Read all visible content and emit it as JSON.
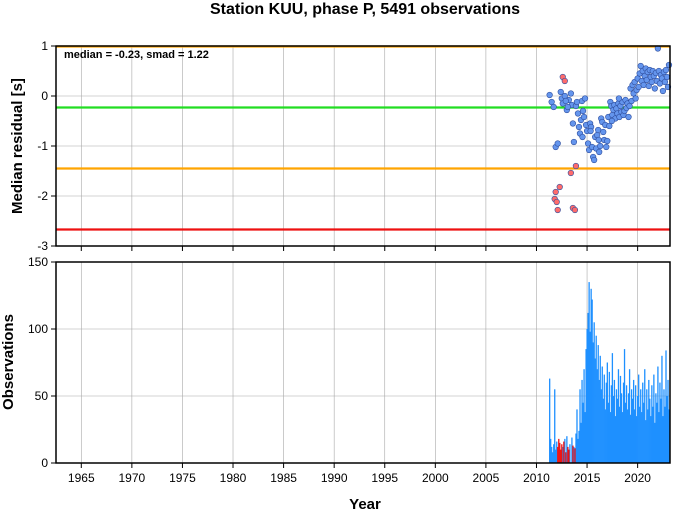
{
  "chart_data": [
    {
      "type": "scatter",
      "title": "Station KUU, phase P, 5491 observations",
      "xlabel": "",
      "ylabel": "Median residual [s]",
      "xlim": [
        1962.5,
        2023.2
      ],
      "ylim": [
        -3,
        1
      ],
      "yticks": [
        "-3",
        "-2",
        "-1",
        "0",
        "1"
      ],
      "grid": true,
      "annotation": "median = -0.23, smad = 1.22",
      "reference_lines": [
        {
          "y": 0.99,
          "color": "#ffa500"
        },
        {
          "y": -0.23,
          "color": "#22dd22"
        },
        {
          "y": -1.45,
          "color": "#ffa500"
        },
        {
          "y": -2.67,
          "color": "#ee1111"
        }
      ],
      "series": [
        {
          "color": "#ff6b6b",
          "points": [
            [
              2012.6,
              0.38
            ],
            [
              2011.9,
              -1.92
            ],
            [
              2011.8,
              -2.06
            ],
            [
              2012.0,
              -2.12
            ],
            [
              2012.1,
              -2.28
            ],
            [
              2012.3,
              -1.82
            ],
            [
              2013.6,
              -2.24
            ],
            [
              2013.8,
              -2.28
            ],
            [
              2013.9,
              -1.4
            ],
            [
              2013.4,
              -1.54
            ],
            [
              2012.8,
              0.3
            ]
          ]
        },
        {
          "color": "#6495ed",
          "points": [
            [
              2011.3,
              0.02
            ],
            [
              2011.5,
              -0.12
            ],
            [
              2011.7,
              -0.22
            ],
            [
              2011.9,
              -1.02
            ],
            [
              2012.1,
              -0.95
            ],
            [
              2012.4,
              0.08
            ],
            [
              2012.5,
              -0.05
            ],
            [
              2012.6,
              -0.15
            ],
            [
              2012.8,
              0.0
            ],
            [
              2013.0,
              -0.28
            ],
            [
              2013.2,
              -0.08
            ],
            [
              2013.4,
              0.05
            ],
            [
              2013.5,
              -0.18
            ],
            [
              2013.6,
              -0.55
            ],
            [
              2013.7,
              -0.92
            ],
            [
              2013.9,
              -0.2
            ],
            [
              2014.0,
              -0.12
            ],
            [
              2014.1,
              -0.35
            ],
            [
              2014.2,
              -0.62
            ],
            [
              2014.3,
              -0.75
            ],
            [
              2014.4,
              -0.48
            ],
            [
              2014.5,
              -0.1
            ],
            [
              2014.6,
              -0.3
            ],
            [
              2014.7,
              -0.42
            ],
            [
              2014.8,
              -0.05
            ],
            [
              2014.9,
              -0.58
            ],
            [
              2015.0,
              -0.7
            ],
            [
              2015.1,
              -0.95
            ],
            [
              2015.2,
              -1.08
            ],
            [
              2015.3,
              -0.55
            ],
            [
              2015.4,
              -0.62
            ],
            [
              2015.5,
              -1.02
            ],
            [
              2015.6,
              -1.22
            ],
            [
              2015.7,
              -1.28
            ],
            [
              2015.8,
              -0.82
            ],
            [
              2015.9,
              -1.05
            ],
            [
              2016.0,
              -0.78
            ],
            [
              2016.1,
              -0.68
            ],
            [
              2016.2,
              -1.12
            ],
            [
              2016.3,
              -1.0
            ],
            [
              2016.4,
              -0.45
            ],
            [
              2016.5,
              -0.52
            ],
            [
              2016.6,
              -0.72
            ],
            [
              2016.7,
              -0.88
            ],
            [
              2016.8,
              -0.58
            ],
            [
              2016.9,
              -1.02
            ],
            [
              2017.0,
              -0.9
            ],
            [
              2017.1,
              -0.42
            ],
            [
              2017.2,
              -0.6
            ],
            [
              2017.3,
              -0.12
            ],
            [
              2017.4,
              -0.2
            ],
            [
              2017.5,
              -0.38
            ],
            [
              2017.6,
              -0.28
            ],
            [
              2017.7,
              -0.18
            ],
            [
              2017.8,
              -0.45
            ],
            [
              2017.9,
              -0.25
            ],
            [
              2018.0,
              -0.35
            ],
            [
              2018.1,
              -0.15
            ],
            [
              2018.2,
              -0.42
            ],
            [
              2018.3,
              -0.2
            ],
            [
              2018.4,
              -0.32
            ],
            [
              2018.5,
              -0.12
            ],
            [
              2018.6,
              -0.38
            ],
            [
              2018.7,
              -0.3
            ],
            [
              2018.8,
              -0.08
            ],
            [
              2018.9,
              -0.24
            ],
            [
              2019.0,
              -0.15
            ],
            [
              2019.1,
              -0.42
            ],
            [
              2019.2,
              -0.2
            ],
            [
              2019.3,
              0.15
            ],
            [
              2019.4,
              -0.1
            ],
            [
              2019.5,
              0.22
            ],
            [
              2019.6,
              0.05
            ],
            [
              2019.7,
              0.28
            ],
            [
              2019.8,
              -0.05
            ],
            [
              2019.9,
              0.12
            ],
            [
              2020.0,
              0.35
            ],
            [
              2020.1,
              0.18
            ],
            [
              2020.2,
              0.45
            ],
            [
              2020.3,
              0.6
            ],
            [
              2020.4,
              0.3
            ],
            [
              2020.5,
              0.5
            ],
            [
              2020.6,
              0.22
            ],
            [
              2020.7,
              0.4
            ],
            [
              2020.8,
              0.55
            ],
            [
              2020.9,
              0.32
            ],
            [
              2021.0,
              0.48
            ],
            [
              2021.1,
              0.2
            ],
            [
              2021.2,
              0.52
            ],
            [
              2021.3,
              0.38
            ],
            [
              2021.4,
              0.28
            ],
            [
              2021.5,
              0.5
            ],
            [
              2021.6,
              0.4
            ],
            [
              2021.7,
              0.15
            ],
            [
              2021.8,
              0.46
            ],
            [
              2021.9,
              0.3
            ],
            [
              2022.0,
              0.95
            ],
            [
              2022.1,
              0.5
            ],
            [
              2022.2,
              0.25
            ],
            [
              2022.3,
              0.42
            ],
            [
              2022.4,
              0.35
            ],
            [
              2022.5,
              0.1
            ],
            [
              2022.6,
              0.48
            ],
            [
              2022.7,
              0.28
            ],
            [
              2022.8,
              0.52
            ],
            [
              2022.9,
              0.38
            ],
            [
              2023.0,
              0.18
            ],
            [
              2023.1,
              0.62
            ],
            [
              2012.9,
              -0.1
            ],
            [
              2013.1,
              -0.22
            ],
            [
              2014.55,
              -0.82
            ],
            [
              2015.35,
              -0.7
            ],
            [
              2016.15,
              -0.88
            ],
            [
              2017.45,
              -0.5
            ],
            [
              2018.15,
              -0.05
            ]
          ]
        }
      ]
    },
    {
      "type": "bar",
      "title": "",
      "xlabel": "Year",
      "ylabel": "Observations",
      "xlim": [
        1962.5,
        2023.2
      ],
      "ylim": [
        0,
        150
      ],
      "yticks": [
        "0",
        "50",
        "100",
        "150"
      ],
      "xticks": [
        "1965",
        "1970",
        "1975",
        "1980",
        "1985",
        "1990",
        "1995",
        "2000",
        "2005",
        "2010",
        "2015",
        "2020"
      ],
      "grid": true,
      "series": [
        {
          "color": "#1e90ff",
          "points": [
            [
              2011.3,
              63
            ],
            [
              2011.4,
              18
            ],
            [
              2011.5,
              12
            ],
            [
              2011.6,
              8
            ],
            [
              2011.7,
              14
            ],
            [
              2011.8,
              55
            ],
            [
              2011.9,
              10
            ],
            [
              2012.0,
              16
            ],
            [
              2012.6,
              12
            ],
            [
              2012.8,
              18
            ],
            [
              2013.0,
              20
            ],
            [
              2013.3,
              14
            ],
            [
              2013.5,
              19
            ],
            [
              2013.7,
              12
            ],
            [
              2013.9,
              22
            ],
            [
              2014.0,
              40
            ],
            [
              2014.1,
              18
            ],
            [
              2014.2,
              24
            ],
            [
              2014.3,
              55
            ],
            [
              2014.4,
              30
            ],
            [
              2014.5,
              62
            ],
            [
              2014.6,
              45
            ],
            [
              2014.7,
              70
            ],
            [
              2014.8,
              38
            ],
            [
              2014.9,
              85
            ],
            [
              2015.0,
              100
            ],
            [
              2015.1,
              112
            ],
            [
              2015.2,
              135
            ],
            [
              2015.3,
              98
            ],
            [
              2015.4,
              130
            ],
            [
              2015.5,
              122
            ],
            [
              2015.6,
              90
            ],
            [
              2015.7,
              105
            ],
            [
              2015.8,
              78
            ],
            [
              2015.9,
              95
            ],
            [
              2016.0,
              70
            ],
            [
              2016.1,
              88
            ],
            [
              2016.2,
              62
            ],
            [
              2016.3,
              80
            ],
            [
              2016.4,
              55
            ],
            [
              2016.5,
              72
            ],
            [
              2016.6,
              48
            ],
            [
              2016.7,
              66
            ],
            [
              2016.8,
              40
            ],
            [
              2016.9,
              60
            ],
            [
              2017.0,
              75
            ],
            [
              2017.1,
              45
            ],
            [
              2017.2,
              68
            ],
            [
              2017.3,
              38
            ],
            [
              2017.4,
              58
            ],
            [
              2017.5,
              82
            ],
            [
              2017.6,
              50
            ],
            [
              2017.7,
              62
            ],
            [
              2017.8,
              35
            ],
            [
              2017.9,
              55
            ],
            [
              2018.0,
              48
            ],
            [
              2018.1,
              70
            ],
            [
              2018.2,
              42
            ],
            [
              2018.3,
              65
            ],
            [
              2018.4,
              52
            ],
            [
              2018.5,
              38
            ],
            [
              2018.6,
              60
            ],
            [
              2018.7,
              85
            ],
            [
              2018.8,
              45
            ],
            [
              2018.9,
              58
            ],
            [
              2019.0,
              40
            ],
            [
              2019.1,
              52
            ],
            [
              2019.2,
              70
            ],
            [
              2019.3,
              36
            ],
            [
              2019.4,
              55
            ],
            [
              2019.5,
              48
            ],
            [
              2019.6,
              62
            ],
            [
              2019.7,
              40
            ],
            [
              2019.8,
              58
            ],
            [
              2019.9,
              35
            ],
            [
              2020.0,
              50
            ],
            [
              2020.1,
              66
            ],
            [
              2020.2,
              42
            ],
            [
              2020.3,
              55
            ],
            [
              2020.4,
              38
            ],
            [
              2020.5,
              60
            ],
            [
              2020.6,
              45
            ],
            [
              2020.7,
              70
            ],
            [
              2020.8,
              32
            ],
            [
              2020.9,
              55
            ],
            [
              2021.0,
              40
            ],
            [
              2021.1,
              62
            ],
            [
              2021.2,
              48
            ],
            [
              2021.3,
              35
            ],
            [
              2021.4,
              58
            ],
            [
              2021.5,
              42
            ],
            [
              2021.6,
              66
            ],
            [
              2021.7,
              30
            ],
            [
              2021.8,
              52
            ],
            [
              2021.9,
              45
            ],
            [
              2022.0,
              72
            ],
            [
              2022.1,
              38
            ],
            [
              2022.2,
              60
            ],
            [
              2022.3,
              48
            ],
            [
              2022.4,
              80
            ],
            [
              2022.5,
              35
            ],
            [
              2022.6,
              55
            ],
            [
              2022.7,
              42
            ],
            [
              2022.8,
              84
            ],
            [
              2022.9,
              50
            ],
            [
              2023.0,
              62
            ],
            [
              2023.1,
              40
            ]
          ]
        },
        {
          "color": "#ee1111",
          "points": [
            [
              2012.1,
              12
            ],
            [
              2012.2,
              18
            ],
            [
              2012.3,
              15
            ],
            [
              2012.4,
              10
            ],
            [
              2012.5,
              14
            ],
            [
              2012.7,
              16
            ],
            [
              2012.9,
              8
            ],
            [
              2013.1,
              12
            ],
            [
              2013.2,
              10
            ],
            [
              2013.6,
              13
            ],
            [
              2013.8,
              11
            ]
          ]
        }
      ]
    }
  ]
}
